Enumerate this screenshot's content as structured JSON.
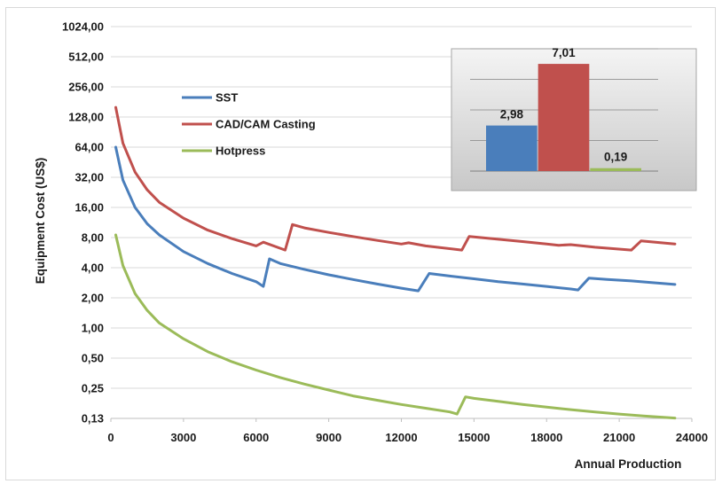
{
  "chart_data": [
    {
      "type": "line",
      "xlabel": "Annual Production",
      "ylabel": "Equipment Cost (US$)",
      "yscale": "log2",
      "xlim": [
        0,
        24000
      ],
      "ylim": [
        0.125,
        1024
      ],
      "grid": "horizontal",
      "legend_position": "upper-left",
      "x_ticks": [
        "0",
        "3000",
        "6000",
        "9000",
        "12000",
        "15000",
        "18000",
        "21000",
        "24000"
      ],
      "y_ticks": [
        "0,13",
        "0,25",
        "0,50",
        "1,00",
        "2,00",
        "4,00",
        "8,00",
        "16,00",
        "32,00",
        "64,00",
        "128,00",
        "256,00",
        "512,00",
        "1024,00"
      ],
      "series": [
        {
          "name": "SST",
          "color": "#4a7ebb",
          "x": [
            200,
            500,
            1000,
            1500,
            2000,
            3000,
            4000,
            5000,
            6000,
            6300,
            6550,
            7000,
            8000,
            9000,
            10000,
            11000,
            12000,
            12700,
            13150,
            14000,
            15000,
            16000,
            17000,
            18000,
            19000,
            19300,
            19750,
            20500,
            21500,
            22500,
            23300
          ],
          "y": [
            64,
            30,
            16,
            11,
            8.5,
            5.8,
            4.4,
            3.5,
            2.9,
            2.6,
            4.9,
            4.4,
            3.85,
            3.4,
            3.05,
            2.75,
            2.5,
            2.35,
            3.5,
            3.3,
            3.1,
            2.9,
            2.75,
            2.6,
            2.45,
            2.4,
            3.15,
            3.05,
            2.95,
            2.82,
            2.72
          ]
        },
        {
          "name": "CAD/CAM Casting",
          "color": "#c0504d",
          "x": [
            200,
            500,
            1000,
            1500,
            2000,
            3000,
            4000,
            5000,
            6000,
            6300,
            7200,
            7500,
            8000,
            9000,
            10000,
            11000,
            12000,
            12300,
            13000,
            14500,
            14800,
            16000,
            17000,
            18000,
            18500,
            19000,
            20000,
            21500,
            21900,
            23300
          ],
          "y": [
            160,
            70,
            36,
            24,
            18,
            12.5,
            9.5,
            7.8,
            6.6,
            7.2,
            6.0,
            10.8,
            10,
            9,
            8.2,
            7.5,
            6.9,
            7.1,
            6.6,
            6.0,
            8.2,
            7.7,
            7.3,
            6.9,
            6.7,
            6.8,
            6.4,
            6.0,
            7.4,
            6.9
          ]
        },
        {
          "name": "Hotpress",
          "color": "#9bbb59",
          "x": [
            200,
            500,
            1000,
            1500,
            2000,
            3000,
            4000,
            5000,
            6000,
            7000,
            8000,
            9000,
            10000,
            11000,
            12000,
            13000,
            14000,
            14300,
            14650,
            15000,
            16000,
            17000,
            18000,
            19000,
            20000,
            21000,
            22000,
            23300
          ],
          "y": [
            8.5,
            4.2,
            2.2,
            1.5,
            1.12,
            0.78,
            0.58,
            0.46,
            0.38,
            0.32,
            0.275,
            0.24,
            0.21,
            0.19,
            0.172,
            0.158,
            0.145,
            0.138,
            0.205,
            0.198,
            0.185,
            0.172,
            0.162,
            0.153,
            0.145,
            0.138,
            0.132,
            0.126
          ]
        }
      ]
    },
    {
      "type": "bar",
      "categories": [
        "SST",
        "CAD/CAM Casting",
        "Hotpress"
      ],
      "values": [
        2.98,
        7.01,
        0.19
      ],
      "value_labels": [
        "2,98",
        "7,01",
        "0,19"
      ],
      "colors": [
        "#4a7ebb",
        "#c0504d",
        "#9bbb59"
      ],
      "ylim": [
        0,
        8
      ],
      "grid": "horizontal"
    }
  ]
}
